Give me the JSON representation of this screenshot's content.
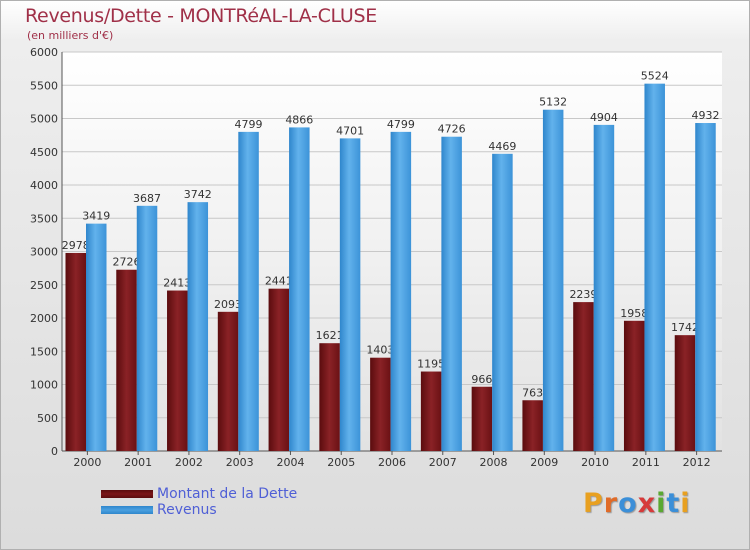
{
  "title": "Revenus/Dette - MONTRéAL-LA-CLUSE",
  "subtitle": "(en milliers d'€)",
  "colors": {
    "debt": "#7a1518",
    "revenue": "#4aa0e0",
    "title": "#a03048",
    "legend_text": "#4f5fd6"
  },
  "legend": [
    {
      "label": "Montant de la Dette",
      "color_key": "debt"
    },
    {
      "label": "Revenus",
      "color_key": "revenue"
    }
  ],
  "logo": {
    "text": "Proxiti",
    "letter_colors": [
      "#e8a020",
      "#e06b28",
      "#3b8fd8",
      "#d63a3a",
      "#5aa832",
      "#3b8fd8",
      "#e8a020"
    ]
  },
  "chart_data": {
    "type": "bar",
    "title": "Revenus/Dette - MONTRéAL-LA-CLUSE",
    "subtitle": "(en milliers d'€)",
    "categories": [
      "2000",
      "2001",
      "2002",
      "2003",
      "2004",
      "2005",
      "2006",
      "2007",
      "2008",
      "2009",
      "2010",
      "2011",
      "2012"
    ],
    "series": [
      {
        "name": "Montant de la Dette",
        "values": [
          2978,
          2726,
          2413,
          2093,
          2441,
          1621,
          1403,
          1195,
          966,
          763,
          2239,
          1958,
          1742
        ],
        "labels": [
          "2978",
          "2726",
          "2413",
          "2093",
          "2441",
          "1621",
          "1403",
          "1195",
          "966",
          "763",
          "2239",
          "1958",
          "1742"
        ]
      },
      {
        "name": "Revenus",
        "values": [
          3419,
          3687,
          3742,
          4799,
          4866,
          4701,
          4799,
          4726,
          4469,
          5132,
          4904,
          5524,
          4932
        ],
        "labels": [
          "3419",
          "3687",
          "3742",
          "4799",
          "4866",
          "4701",
          "4799",
          "4726",
          "4469",
          "5132",
          "4904",
          "5524",
          "4932"
        ]
      }
    ],
    "ylim": [
      0,
      6000
    ],
    "yticks": [
      0,
      500,
      1000,
      1500,
      2000,
      2500,
      3000,
      3500,
      4000,
      4500,
      5000,
      5500,
      6000
    ],
    "grid": true,
    "legend_position": "bottom-left"
  }
}
